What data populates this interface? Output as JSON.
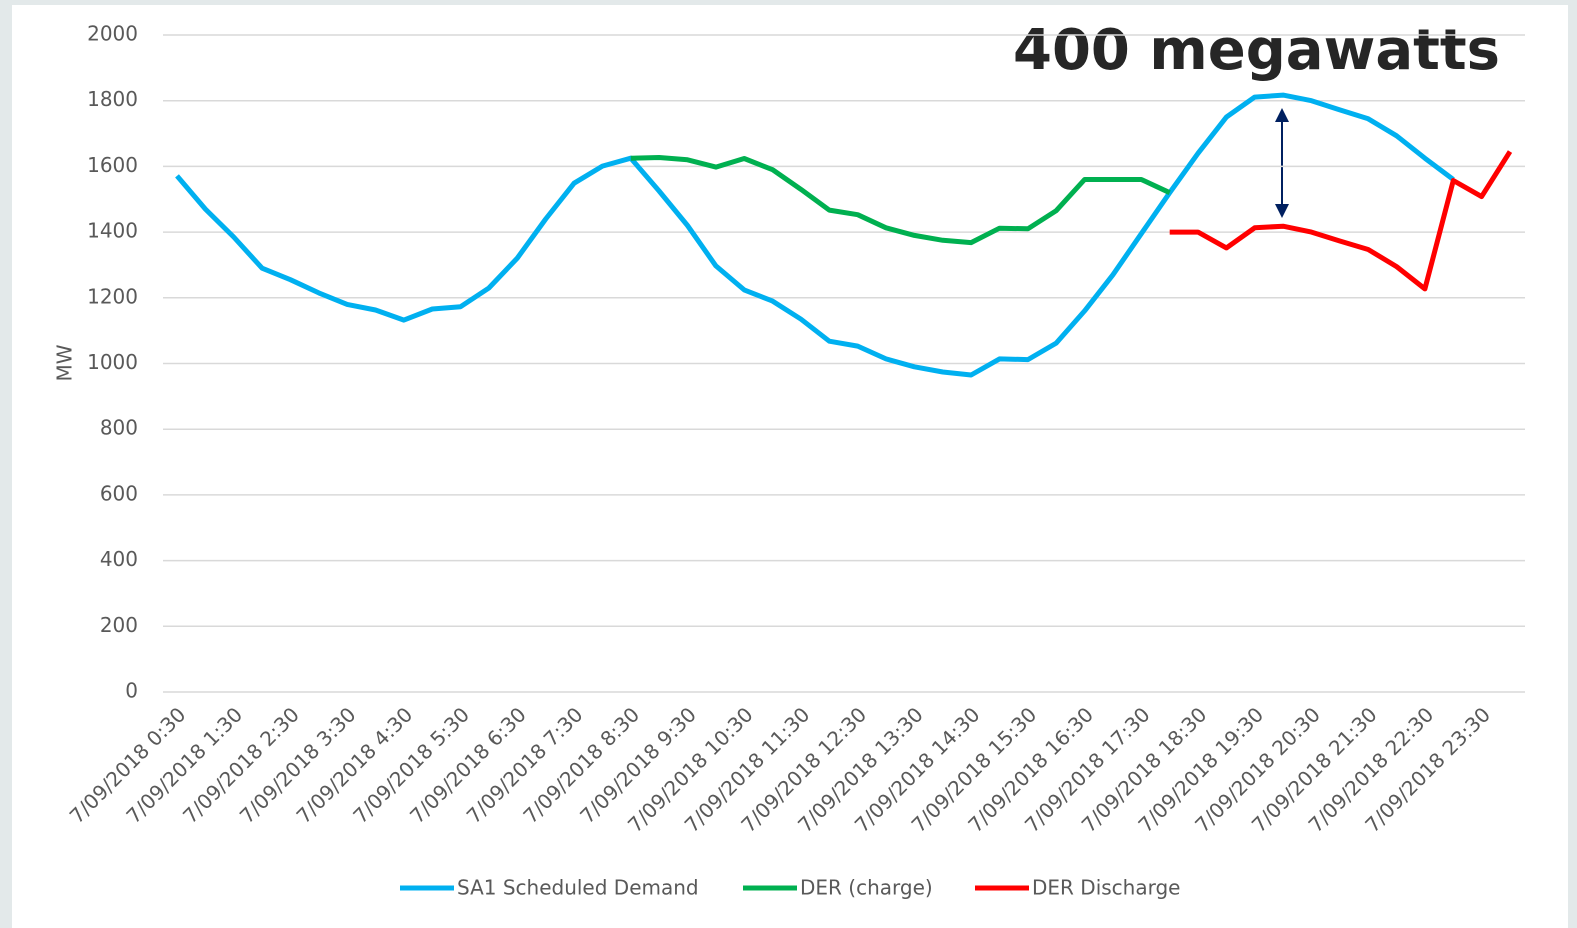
{
  "chart_data": {
    "type": "line",
    "annotation": "400 megawatts",
    "y_label": "MW",
    "categories": [
      "7/09/2018 0:30",
      null,
      "7/09/2018 1:30",
      null,
      "7/09/2018 2:30",
      null,
      "7/09/2018 3:30",
      null,
      "7/09/2018 4:30",
      null,
      "7/09/2018 5:30",
      null,
      "7/09/2018 6:30",
      null,
      "7/09/2018 7:30",
      null,
      "7/09/2018 8:30",
      null,
      "7/09/2018 9:30",
      null,
      "7/09/2018 10:30",
      null,
      "7/09/2018 11:30",
      null,
      "7/09/2018 12:30",
      null,
      "7/09/2018 13:30",
      null,
      "7/09/2018 14:30",
      null,
      "7/09/2018 15:30",
      null,
      "7/09/2018 16:30",
      null,
      "7/09/2018 17:30",
      null,
      "7/09/2018 18:30",
      null,
      "7/09/2018 19:30",
      null,
      "7/09/2018 20:30",
      null,
      "7/09/2018 21:30",
      null,
      "7/09/2018 22:30",
      null,
      "7/09/2018 23:30",
      null
    ],
    "series": [
      {
        "name": "SA1 Scheduled Demand",
        "color": "#00b0f0",
        "values": [
          1571,
          1470,
          1385,
          1290,
          1255,
          1215,
          1180,
          1163,
          1132,
          1166,
          1173,
          1230,
          1321,
          1440,
          1549,
          1601,
          1625,
          1525,
          1420,
          1297,
          1224,
          1190,
          1135,
          1068,
          1053,
          1014,
          990,
          974,
          965,
          1014,
          1012,
          1062,
          1160,
          1270,
          1395,
          1520,
          1640,
          1750,
          1811,
          1817,
          1800,
          1772,
          1745,
          1693,
          1625,
          1560,
          null,
          null
        ]
      },
      {
        "name": "DER (charge)",
        "color": "#00b050",
        "values": [
          null,
          null,
          null,
          null,
          null,
          null,
          null,
          null,
          null,
          null,
          null,
          null,
          null,
          null,
          null,
          null,
          1625,
          1627,
          1620,
          1598,
          1624,
          1590,
          1530,
          1467,
          1453,
          1413,
          1390,
          1375,
          1368,
          1412,
          1410,
          1465,
          1560,
          1560,
          1560,
          1520,
          null,
          null,
          null,
          null,
          null,
          null,
          null,
          null,
          null,
          null,
          null,
          null
        ]
      },
      {
        "name": "DER Discharge",
        "color": "#ff0000",
        "values": [
          null,
          null,
          null,
          null,
          null,
          null,
          null,
          null,
          null,
          null,
          null,
          null,
          null,
          null,
          null,
          null,
          null,
          null,
          null,
          null,
          null,
          null,
          null,
          null,
          null,
          null,
          null,
          null,
          null,
          null,
          null,
          null,
          null,
          null,
          null,
          1400,
          1400,
          1352,
          1413,
          1418,
          1400,
          1373,
          1347,
          1295,
          1227,
          1557,
          1508,
          1645
        ]
      }
    ],
    "ylim": [
      0,
      2000
    ],
    "yticks": [
      0,
      200,
      400,
      600,
      800,
      1000,
      1200,
      1400,
      1600,
      1800,
      2000
    ],
    "grid": true,
    "legend": "bottom"
  }
}
